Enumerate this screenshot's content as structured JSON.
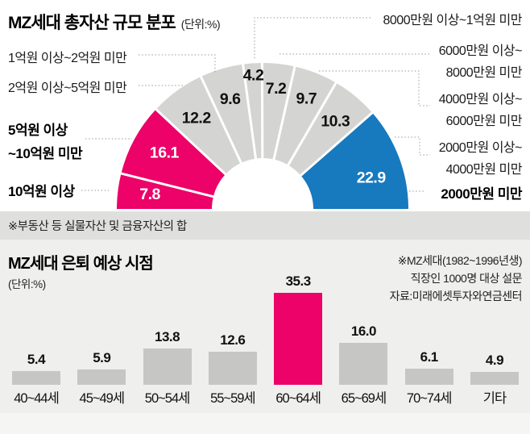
{
  "asset_chart": {
    "title": "MZ세대 총자산 규모 분포",
    "unit": "(단위:%)",
    "left_labels": [
      {
        "text": "1억원 이상~2억원 미만"
      },
      {
        "text": "2억원 이상~5억원 미만"
      },
      {
        "text": "5억원 이상\n~10억원 미만"
      },
      {
        "text": "10억원 이상"
      }
    ],
    "right_labels": [
      {
        "text": "8000만원 이상~1억원 미만"
      },
      {
        "text": "6000만원 이상~\n8000만원 미만"
      },
      {
        "text": "4000만원 이상~\n6000만원 미만"
      },
      {
        "text": "2000만원 이상~\n4000만원 미만"
      },
      {
        "text": "2000만원 미만"
      }
    ],
    "footnote": "※부동산 등 실물자산 및 금융자산의 합"
  },
  "retirement_chart": {
    "title": "MZ세대 은퇴 예상 시점",
    "unit": "(단위:%)",
    "note": "※MZ세대(1982~1996년생)\n직장인 1000명 대상 설문\n자료:미래에셋투자와연금센터",
    "value_labels": [
      "5.4",
      "5.9",
      "13.8",
      "12.6",
      "35.3",
      "16.0",
      "6.1",
      "4.9"
    ]
  },
  "chart_data": [
    {
      "type": "pie",
      "shape": "semicircle-donut",
      "title": "MZ세대 총자산 규모 분포",
      "unit": "%",
      "order": "left-to-right across the half circle",
      "labels": [
        "10억원 이상",
        "5억원 이상~10억원 미만",
        "2억원 이상~5억원 미만",
        "1억원 이상~2억원 미만",
        "8000만원 이상~1억원 미만",
        "6000만원 이상~8000만원 미만",
        "4000만원 이상~6000만원 미만",
        "2000만원 이상~4000만원 미만",
        "2000만원 미만"
      ],
      "values": [
        7.8,
        16.1,
        12.2,
        9.6,
        4.2,
        7.2,
        9.7,
        10.3,
        22.9
      ],
      "colors": [
        "#ec0268",
        "#ec0268",
        "#d4d4d2",
        "#d4d4d2",
        "#d4d4d2",
        "#d4d4d2",
        "#d4d4d2",
        "#d4d4d2",
        "#1779be"
      ],
      "label_colors": [
        "#ffffff",
        "#ffffff",
        "#111111",
        "#111111",
        "#111111",
        "#111111",
        "#111111",
        "#111111",
        "#ffffff"
      ]
    },
    {
      "type": "bar",
      "title": "MZ세대 은퇴 예상 시점",
      "unit": "%",
      "categories": [
        "40~44세",
        "45~49세",
        "50~54세",
        "55~59세",
        "60~64세",
        "65~69세",
        "70~74세",
        "기타"
      ],
      "values": [
        5.4,
        5.9,
        13.8,
        12.6,
        35.3,
        16.0,
        6.1,
        4.9
      ],
      "ylim": [
        0,
        40
      ],
      "grid": false,
      "bar_color": "#c6c6c4",
      "highlight_index": 4,
      "highlight_color": "#ec0268"
    }
  ]
}
